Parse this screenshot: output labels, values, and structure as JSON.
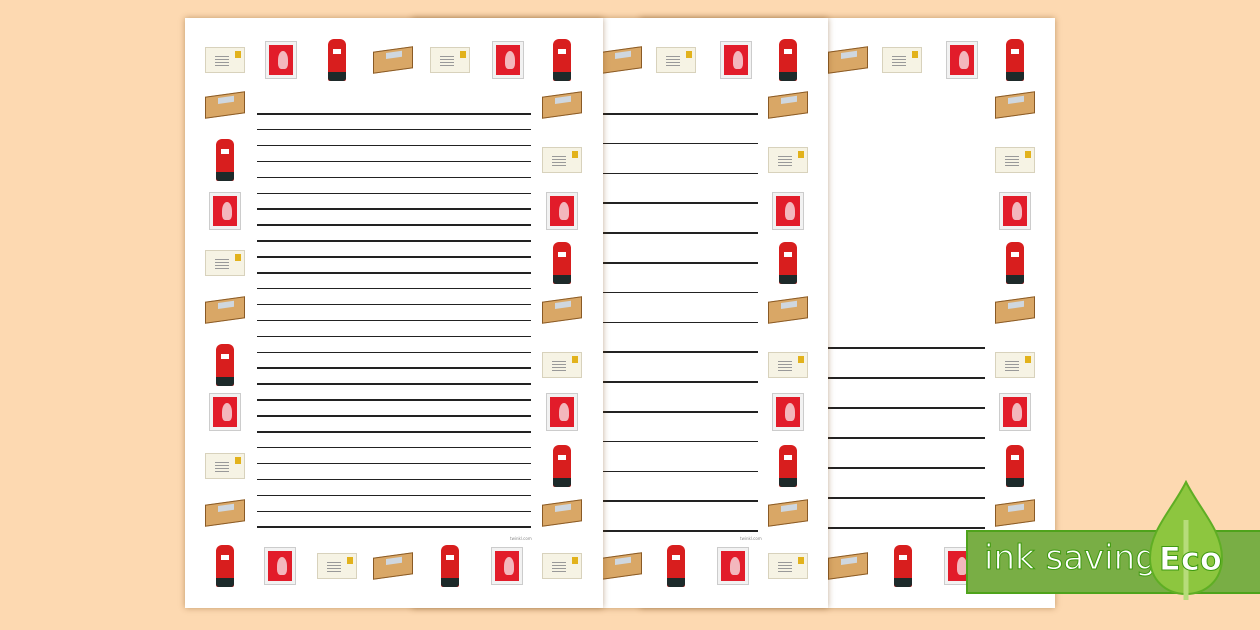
{
  "pages": [
    {
      "top_row": [
        "envelope",
        "stamp",
        "postbox",
        "parcel",
        "envelope",
        "stamp",
        "postbox"
      ],
      "left_col": [
        "parcel",
        "postbox",
        "stamp",
        "envelope",
        "parcel",
        "postbox",
        "stamp",
        "envelope",
        "parcel"
      ],
      "right_col": [
        "parcel",
        "envelope",
        "stamp",
        "postbox",
        "parcel",
        "envelope",
        "stamp",
        "postbox",
        "parcel"
      ],
      "bottom_row": [
        "postbox",
        "stamp",
        "envelope",
        "parcel",
        "postbox",
        "stamp",
        "envelope"
      ],
      "line_count": 27,
      "footer": "twinkl.com"
    },
    {
      "top_row": [
        "parcel",
        "envelope",
        "stamp",
        "postbox"
      ],
      "right_col": [
        "parcel",
        "envelope",
        "stamp",
        "postbox",
        "parcel",
        "envelope",
        "stamp",
        "postbox",
        "parcel"
      ],
      "bottom_row": [
        "parcel",
        "postbox",
        "stamp",
        "envelope"
      ],
      "line_count": 15,
      "footer": "twinkl.com"
    },
    {
      "top_row": [
        "parcel",
        "envelope",
        "stamp",
        "postbox"
      ],
      "right_col": [
        "parcel",
        "envelope",
        "stamp",
        "postbox",
        "parcel",
        "envelope",
        "stamp",
        "postbox",
        "parcel"
      ],
      "bottom_row": [
        "parcel",
        "postbox",
        "stamp"
      ],
      "line_count": 7
    }
  ],
  "badge": {
    "label": "ink saving",
    "eco": "Eco",
    "icon": "leaf-drop-icon",
    "color": "#79ae45",
    "leaf_color": "#8dc63f"
  },
  "background": "#fdd9b1"
}
